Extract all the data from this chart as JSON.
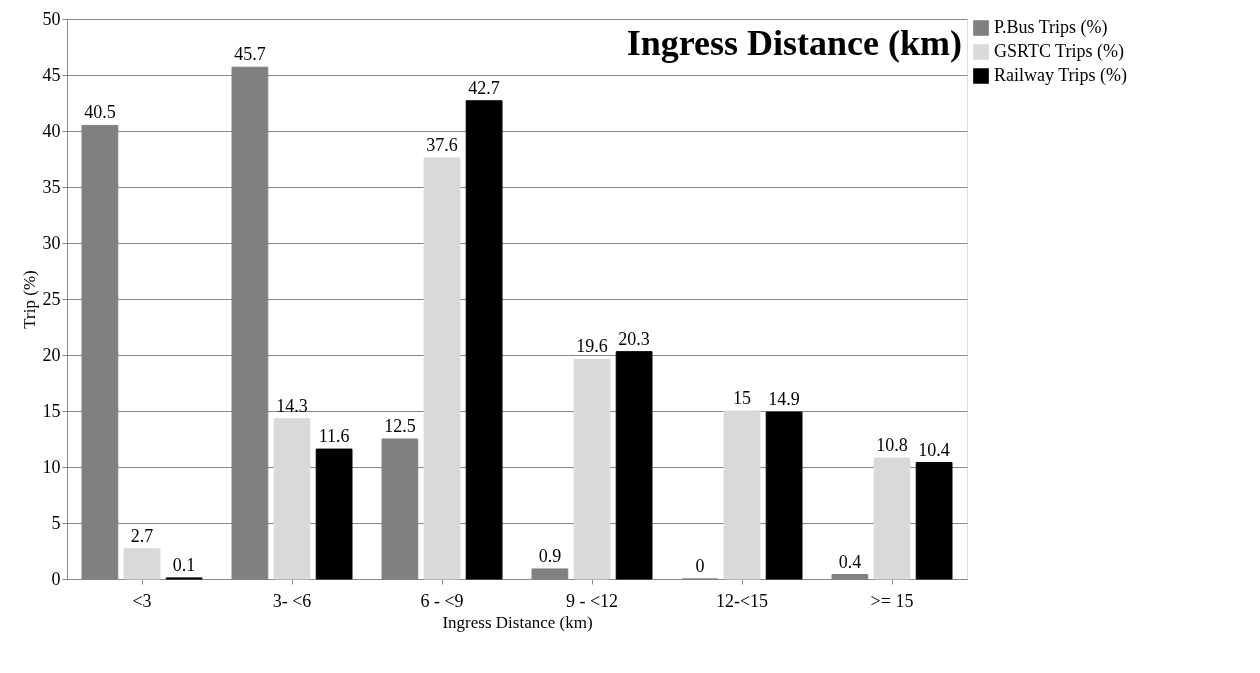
{
  "chart_data": {
    "type": "bar",
    "title": "Ingress Distance (km)",
    "xlabel": "Ingress Distance (km)",
    "ylabel": "Trip (%)",
    "categories": [
      "<3",
      "3- <6",
      "6 - <9",
      "9 - <12",
      "12-<15",
      ">= 15"
    ],
    "series": [
      {
        "name": "P.Bus Trips (%)",
        "color": "#808080",
        "values": [
          40.5,
          45.7,
          12.5,
          0.9,
          0,
          0.4
        ]
      },
      {
        "name": "GSRTC Trips (%)",
        "color": "#d9d9d9",
        "values": [
          2.7,
          14.3,
          37.6,
          19.6,
          15,
          10.8
        ]
      },
      {
        "name": "Railway Trips (%)",
        "color": "#000000",
        "values": [
          0.1,
          11.6,
          42.7,
          20.3,
          14.9,
          10.4
        ]
      }
    ],
    "ylim": [
      0,
      50
    ],
    "yticks": [
      0,
      5,
      10,
      15,
      20,
      25,
      30,
      35,
      40,
      45,
      50
    ],
    "grid": "y",
    "legend": "right",
    "data_labels": true
  }
}
